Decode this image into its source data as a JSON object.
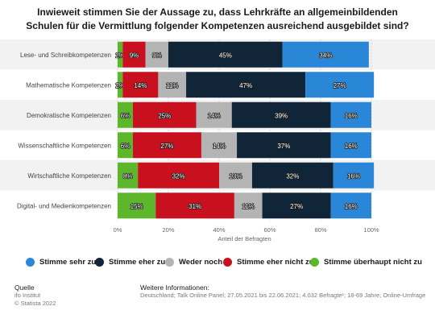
{
  "title_lines": [
    "Inwieweit stimmen Sie der Aussage zu, dass Lehrkräfte an allgemeinbildenden",
    "Schulen für die Vermittlung folgender Kompetenzen ausreichend ausgebildet sind?"
  ],
  "chart_data": {
    "type": "bar",
    "orientation": "horizontal",
    "stacked": true,
    "categories": [
      "Lese- und Schreibkompetenzen",
      "Mathematische Kompetenzen",
      "Demokratische Kompetenzen",
      "Wissenschaftliche Kompetenzen",
      "Wirtschaftliche Kompetenzen",
      "Digital- und Medienkompetenzen"
    ],
    "series": [
      {
        "name": "Stimme überhaupt nicht zu",
        "color": "#5cb82a",
        "values": [
          2,
          2,
          6,
          6,
          8,
          15
        ]
      },
      {
        "name": "Stimme eher nicht zu",
        "color": "#c8101f",
        "values": [
          9,
          14,
          25,
          27,
          32,
          31
        ]
      },
      {
        "name": "Weder noch",
        "color": "#b4b4b4",
        "values": [
          9,
          11,
          14,
          14,
          13,
          11
        ]
      },
      {
        "name": "Stimme eher zu",
        "color": "#102538",
        "values": [
          45,
          47,
          39,
          37,
          32,
          27
        ]
      },
      {
        "name": "Stimme sehr zu",
        "color": "#2a86d6",
        "values": [
          34,
          27,
          16,
          16,
          16,
          16
        ]
      }
    ],
    "data_labels": [
      [
        "2%",
        "9%",
        "9%",
        "45%",
        "34%"
      ],
      [
        "2%",
        "14%",
        "11%",
        "47%",
        "27%"
      ],
      [
        "6%",
        "25%",
        "14%",
        "39%",
        "16%"
      ],
      [
        "6%",
        "27%",
        "14%",
        "37%",
        "16%"
      ],
      [
        "8%",
        "32%",
        "13%",
        "32%",
        "16%"
      ],
      [
        "15%",
        "31%",
        "11%",
        "27%",
        "16%"
      ]
    ],
    "xlim": [
      0,
      100
    ],
    "x_ticks": [
      "0%",
      "20%",
      "40%",
      "60%",
      "80%",
      "100%"
    ],
    "xlabel": "Anteil der Befragten",
    "grid": true,
    "legend_position": "bottom",
    "legend_order": [
      "Stimme sehr zu",
      "Stimme eher zu",
      "Weder noch",
      "Stimme eher nicht zu",
      "Stimme überhaupt nicht zu"
    ]
  },
  "footer": {
    "source_heading": "Quelle",
    "source_lines": [
      "ifo Institut",
      "© Statista 2022"
    ],
    "info_heading": "Weitere Informationen:",
    "info_text": "Deutschland; Talk Online Panel; 27.05.2021 bis 22.06.2021; 4.032 Befragte¹; 18-69 Jahre; Online-Umfrage"
  }
}
